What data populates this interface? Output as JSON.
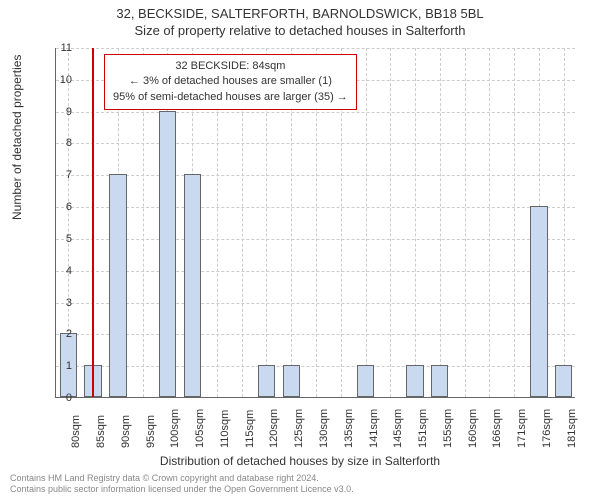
{
  "title_line1": "32, BECKSIDE, SALTERFORTH, BARNOLDSWICK, BB18 5BL",
  "title_line2": "Size of property relative to detached houses in Salterforth",
  "chart": {
    "type": "bar",
    "ylabel": "Number of detached properties",
    "xlabel": "Distribution of detached houses by size in Salterforth",
    "ylim_min": 0,
    "ylim_max": 11,
    "ytick_step": 1,
    "x_categories": [
      "80sqm",
      "85sqm",
      "90sqm",
      "95sqm",
      "100sqm",
      "105sqm",
      "110sqm",
      "115sqm",
      "120sqm",
      "125sqm",
      "130sqm",
      "135sqm",
      "141sqm",
      "145sqm",
      "151sqm",
      "155sqm",
      "160sqm",
      "166sqm",
      "171sqm",
      "176sqm",
      "181sqm"
    ],
    "values": [
      2,
      1,
      7,
      0,
      9,
      7,
      0,
      0,
      1,
      1,
      0,
      0,
      1,
      0,
      1,
      1,
      0,
      0,
      0,
      6,
      1
    ],
    "bar_fill": "#c8d9f0",
    "bar_border": "#666666",
    "grid_color": "#cccccc",
    "background": "#ffffff",
    "axis_color": "#666666",
    "refline_x_category": "85sqm",
    "refline_color": "#cc0000",
    "annotation": {
      "line1": "32 BECKSIDE: 84sqm",
      "line2": "← 3% of detached houses are smaller (1)",
      "line3": "95% of semi-detached houses are larger (35) →",
      "border_color": "#cc0000"
    }
  },
  "footer": {
    "line1": "Contains HM Land Registry data © Crown copyright and database right 2024.",
    "line2": "Contains public sector information licensed under the Open Government Licence v3.0."
  },
  "text_color": "#333333",
  "footer_color": "#888888"
}
